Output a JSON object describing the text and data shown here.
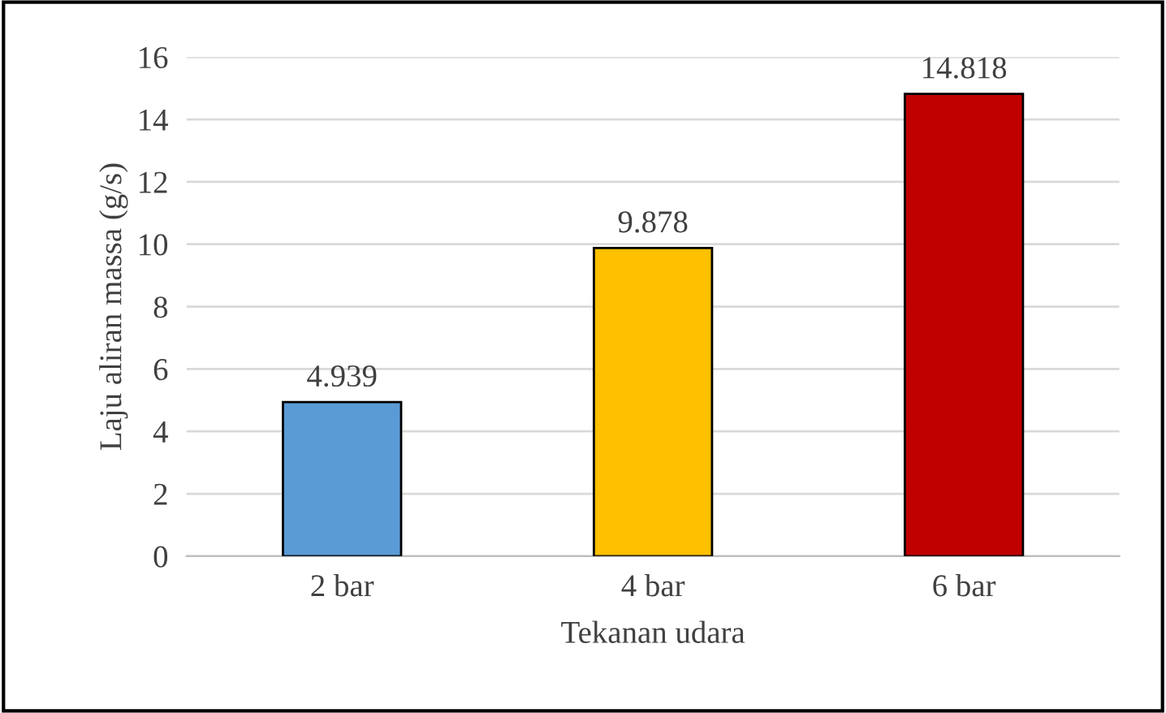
{
  "chart_data": {
    "type": "bar",
    "xlabel": "Tekanan udara",
    "ylabel": "Laju aliran massa (g/s)",
    "categories": [
      "2 bar",
      "4 bar",
      "6 bar"
    ],
    "values": [
      4.939,
      9.878,
      14.818
    ],
    "colors": [
      "#5b9bd5",
      "#ffc000",
      "#c00000"
    ],
    "ylim": [
      0,
      16
    ],
    "yticks": [
      0,
      2,
      4,
      6,
      8,
      10,
      12,
      14,
      16
    ],
    "grid": "y",
    "data_labels": true,
    "legend": false
  }
}
